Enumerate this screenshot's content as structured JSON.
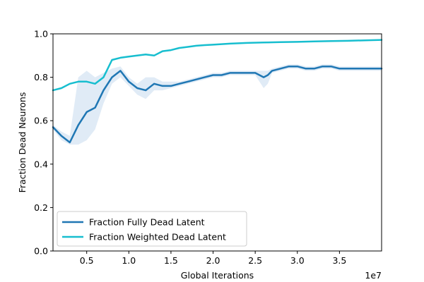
{
  "chart_data": {
    "type": "line",
    "xlabel": "Global Iterations",
    "ylabel": "Fraction Dead Neurons",
    "x_offset_label": "1e7",
    "xlim": [
      0.1,
      4.0
    ],
    "ylim": [
      0.0,
      1.0
    ],
    "x_ticks": [
      0.5,
      1.0,
      1.5,
      2.0,
      2.5,
      3.0,
      3.5
    ],
    "x_tick_labels": [
      "0.5",
      "1.0",
      "1.5",
      "2.0",
      "2.5",
      "3.0",
      "3.5"
    ],
    "y_ticks": [
      0.0,
      0.2,
      0.4,
      0.6,
      0.8,
      1.0
    ],
    "y_tick_labels": [
      "0.0",
      "0.2",
      "0.4",
      "0.6",
      "0.8",
      "1.0"
    ],
    "grid": false,
    "legend_position": "lower-left",
    "colors": {
      "fully_dead": "#1f77b4",
      "weighted_dead": "#17becf",
      "band": "#c6dbef"
    },
    "series": [
      {
        "name": "Fraction Fully Dead Latent",
        "x": [
          0.1,
          0.2,
          0.3,
          0.4,
          0.5,
          0.6,
          0.7,
          0.8,
          0.9,
          1.0,
          1.1,
          1.2,
          1.3,
          1.4,
          1.5,
          1.6,
          1.7,
          1.8,
          1.9,
          2.0,
          2.1,
          2.2,
          2.3,
          2.4,
          2.5,
          2.6,
          2.65,
          2.7,
          2.8,
          2.9,
          3.0,
          3.1,
          3.2,
          3.3,
          3.4,
          3.5,
          3.6,
          3.7,
          3.8,
          3.9,
          4.0
        ],
        "y": [
          0.57,
          0.53,
          0.5,
          0.58,
          0.64,
          0.66,
          0.74,
          0.8,
          0.83,
          0.78,
          0.75,
          0.74,
          0.77,
          0.76,
          0.76,
          0.77,
          0.78,
          0.79,
          0.8,
          0.81,
          0.81,
          0.82,
          0.82,
          0.82,
          0.82,
          0.8,
          0.81,
          0.83,
          0.84,
          0.85,
          0.85,
          0.84,
          0.84,
          0.85,
          0.85,
          0.84,
          0.84,
          0.84,
          0.84,
          0.84,
          0.84
        ],
        "band_upper": [
          0.58,
          0.55,
          0.53,
          0.8,
          0.83,
          0.8,
          0.82,
          0.84,
          0.85,
          0.8,
          0.77,
          0.8,
          0.8,
          0.78,
          0.78,
          0.78,
          0.79,
          0.8,
          0.81,
          0.82,
          0.82,
          0.83,
          0.83,
          0.83,
          0.83,
          0.83,
          0.83,
          0.84,
          0.85,
          0.86,
          0.86,
          0.85,
          0.85,
          0.86,
          0.86,
          0.85,
          0.85,
          0.85,
          0.85,
          0.85,
          0.85
        ],
        "band_lower": [
          0.56,
          0.51,
          0.49,
          0.49,
          0.51,
          0.56,
          0.68,
          0.77,
          0.8,
          0.76,
          0.72,
          0.7,
          0.74,
          0.74,
          0.75,
          0.76,
          0.77,
          0.78,
          0.79,
          0.8,
          0.8,
          0.81,
          0.81,
          0.81,
          0.81,
          0.75,
          0.77,
          0.82,
          0.83,
          0.84,
          0.84,
          0.83,
          0.83,
          0.84,
          0.84,
          0.83,
          0.83,
          0.83,
          0.83,
          0.83,
          0.83
        ]
      },
      {
        "name": "Fraction Weighted Dead Latent",
        "x": [
          0.1,
          0.2,
          0.3,
          0.4,
          0.5,
          0.6,
          0.7,
          0.8,
          0.9,
          1.0,
          1.1,
          1.2,
          1.3,
          1.4,
          1.5,
          1.6,
          1.7,
          1.8,
          1.9,
          2.0,
          2.2,
          2.4,
          2.6,
          2.8,
          3.0,
          3.2,
          3.4,
          3.6,
          3.8,
          4.0
        ],
        "y": [
          0.74,
          0.75,
          0.77,
          0.78,
          0.78,
          0.77,
          0.8,
          0.88,
          0.89,
          0.895,
          0.9,
          0.905,
          0.9,
          0.92,
          0.925,
          0.935,
          0.94,
          0.945,
          0.948,
          0.95,
          0.955,
          0.958,
          0.96,
          0.962,
          0.963,
          0.965,
          0.967,
          0.968,
          0.97,
          0.972
        ]
      }
    ]
  }
}
